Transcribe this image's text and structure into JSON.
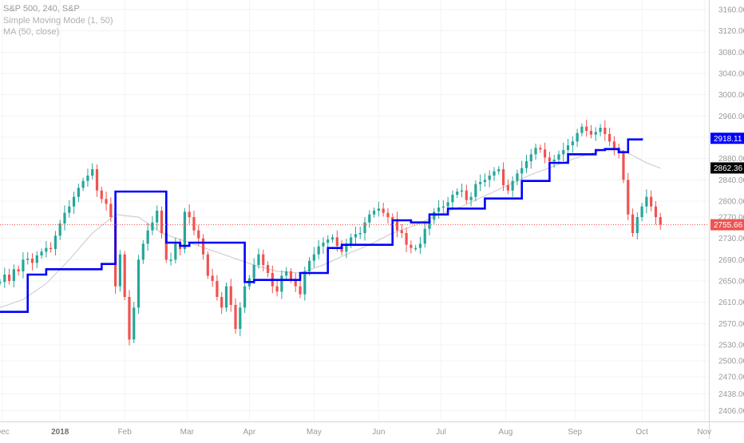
{
  "legend": {
    "title": "S&P 500, 240, S&P",
    "indicator_1": "Simple Moving Mode (1, 50)",
    "indicator_2": "MA (50, close)"
  },
  "colors": {
    "up": "#26a69a",
    "down": "#ef5350",
    "mode_line": "#0000ff",
    "ma_line": "#c8c8c8",
    "last_price": "#ef5350",
    "grid": "#f3f3f3",
    "axis_text": "#9a9a9a"
  },
  "chart_data": {
    "type": "candlestick",
    "y_ticks": [
      3160,
      3120,
      3080,
      3040,
      3000,
      2960,
      2920,
      2880,
      2840,
      2800,
      2770,
      2730,
      2690,
      2650,
      2610,
      2570,
      2530,
      2500,
      2470,
      2438,
      2406
    ],
    "y_range": [
      2386,
      3178
    ],
    "x_labels": [
      "Dec",
      "2018",
      "Feb",
      "Mar",
      "Apr",
      "May",
      "Jun",
      "Jul",
      "Aug",
      "Sep",
      "Oct",
      "Nov"
    ],
    "price_labels": {
      "mode": "2918.11",
      "ma": "2862.36",
      "last": "2755.66"
    },
    "grid": true,
    "candles_approx": [
      [
        0,
        2648
      ],
      [
        0.2,
        2662
      ],
      [
        0.4,
        2650
      ],
      [
        0.6,
        2672
      ],
      [
        0.8,
        2668
      ],
      [
        1.0,
        2690
      ],
      [
        1.2,
        2692
      ],
      [
        1.4,
        2684
      ],
      [
        1.6,
        2698
      ],
      [
        1.8,
        2705
      ],
      [
        2.0,
        2712
      ],
      [
        2.2,
        2710
      ],
      [
        2.4,
        2735
      ],
      [
        2.6,
        2758
      ],
      [
        2.8,
        2778
      ],
      [
        3.0,
        2790
      ],
      [
        3.2,
        2808
      ],
      [
        3.4,
        2825
      ],
      [
        3.6,
        2838
      ],
      [
        3.8,
        2848
      ],
      [
        4.0,
        2860
      ],
      [
        4.2,
        2820
      ],
      [
        4.4,
        2804
      ],
      [
        4.6,
        2795
      ],
      [
        4.8,
        2770
      ],
      [
        5.0,
        2640
      ],
      [
        5.2,
        2700
      ],
      [
        5.4,
        2620
      ],
      [
        5.6,
        2540
      ],
      [
        5.8,
        2600
      ],
      [
        6.0,
        2690
      ],
      [
        6.2,
        2720
      ],
      [
        6.4,
        2745
      ],
      [
        6.6,
        2760
      ],
      [
        6.8,
        2782
      ],
      [
        7.0,
        2740
      ],
      [
        7.2,
        2690
      ],
      [
        7.4,
        2690
      ],
      [
        7.6,
        2720
      ],
      [
        7.8,
        2710
      ],
      [
        8.0,
        2780
      ],
      [
        8.2,
        2770
      ],
      [
        8.4,
        2745
      ],
      [
        8.6,
        2730
      ],
      [
        8.8,
        2700
      ],
      [
        9.0,
        2660
      ],
      [
        9.2,
        2650
      ],
      [
        9.4,
        2620
      ],
      [
        9.6,
        2600
      ],
      [
        9.8,
        2640
      ],
      [
        10.0,
        2605
      ],
      [
        10.2,
        2560
      ],
      [
        10.4,
        2600
      ],
      [
        10.6,
        2640
      ],
      [
        10.8,
        2655
      ],
      [
        11.0,
        2680
      ],
      [
        11.2,
        2700
      ],
      [
        11.4,
        2680
      ],
      [
        11.6,
        2665
      ],
      [
        11.8,
        2640
      ],
      [
        12.0,
        2630
      ],
      [
        12.2,
        2660
      ],
      [
        12.4,
        2668
      ],
      [
        12.6,
        2652
      ],
      [
        12.8,
        2640
      ],
      [
        13.0,
        2625
      ],
      [
        13.2,
        2668
      ],
      [
        13.4,
        2688
      ],
      [
        13.6,
        2700
      ],
      [
        13.8,
        2715
      ],
      [
        14.0,
        2722
      ],
      [
        14.2,
        2728
      ],
      [
        14.4,
        2732
      ],
      [
        14.6,
        2716
      ],
      [
        14.8,
        2705
      ],
      [
        15.0,
        2720
      ],
      [
        15.2,
        2732
      ],
      [
        15.4,
        2738
      ],
      [
        15.6,
        2740
      ],
      [
        15.8,
        2760
      ],
      [
        16.0,
        2775
      ],
      [
        16.2,
        2782
      ],
      [
        16.4,
        2786
      ],
      [
        16.6,
        2778
      ],
      [
        16.8,
        2770
      ],
      [
        17.0,
        2766
      ],
      [
        17.2,
        2745
      ],
      [
        17.4,
        2740
      ],
      [
        17.6,
        2718
      ],
      [
        17.8,
        2712
      ],
      [
        18.0,
        2712
      ],
      [
        18.2,
        2720
      ],
      [
        18.4,
        2748
      ],
      [
        18.6,
        2765
      ],
      [
        18.8,
        2780
      ],
      [
        19.0,
        2788
      ],
      [
        19.2,
        2790
      ],
      [
        19.4,
        2798
      ],
      [
        19.6,
        2812
      ],
      [
        19.8,
        2818
      ],
      [
        20.0,
        2820
      ],
      [
        20.2,
        2802
      ],
      [
        20.4,
        2808
      ],
      [
        20.6,
        2832
      ],
      [
        20.8,
        2836
      ],
      [
        21.0,
        2840
      ],
      [
        21.2,
        2848
      ],
      [
        21.4,
        2856
      ],
      [
        21.6,
        2860
      ],
      [
        21.8,
        2830
      ],
      [
        22.0,
        2820
      ],
      [
        22.2,
        2838
      ],
      [
        22.4,
        2852
      ],
      [
        22.6,
        2862
      ],
      [
        22.8,
        2875
      ],
      [
        23.0,
        2888
      ],
      [
        23.2,
        2900
      ],
      [
        23.4,
        2897
      ],
      [
        23.6,
        2882
      ],
      [
        23.8,
        2875
      ],
      [
        24.0,
        2878
      ],
      [
        24.2,
        2888
      ],
      [
        24.4,
        2896
      ],
      [
        24.6,
        2905
      ],
      [
        24.8,
        2912
      ],
      [
        25.0,
        2928
      ],
      [
        25.2,
        2940
      ],
      [
        25.4,
        2932
      ],
      [
        25.6,
        2925
      ],
      [
        25.8,
        2930
      ],
      [
        26.0,
        2938
      ],
      [
        26.2,
        2926
      ],
      [
        26.4,
        2912
      ],
      [
        26.6,
        2900
      ],
      [
        26.8,
        2890
      ],
      [
        27.0,
        2840
      ],
      [
        27.2,
        2775
      ],
      [
        27.4,
        2740
      ],
      [
        27.6,
        2770
      ],
      [
        27.8,
        2790
      ],
      [
        28.0,
        2808
      ],
      [
        28.2,
        2790
      ],
      [
        28.4,
        2770
      ],
      [
        28.6,
        2756
      ]
    ],
    "mode_steps_approx": [
      [
        0,
        2592
      ],
      [
        1.2,
        2592
      ],
      [
        1.2,
        2662
      ],
      [
        2.0,
        2662
      ],
      [
        2.0,
        2672
      ],
      [
        4.4,
        2672
      ],
      [
        4.4,
        2682
      ],
      [
        5.0,
        2682
      ],
      [
        5.0,
        2818
      ],
      [
        7.2,
        2818
      ],
      [
        7.2,
        2722
      ],
      [
        7.8,
        2722
      ],
      [
        7.8,
        2716
      ],
      [
        8.2,
        2716
      ],
      [
        8.2,
        2722
      ],
      [
        10.6,
        2722
      ],
      [
        10.6,
        2648
      ],
      [
        11.0,
        2648
      ],
      [
        11.0,
        2652
      ],
      [
        13.0,
        2652
      ],
      [
        13.0,
        2665
      ],
      [
        14.2,
        2665
      ],
      [
        14.2,
        2712
      ],
      [
        14.8,
        2712
      ],
      [
        14.8,
        2718
      ],
      [
        17.0,
        2718
      ],
      [
        17.0,
        2764
      ],
      [
        17.8,
        2764
      ],
      [
        17.8,
        2760
      ],
      [
        18.6,
        2760
      ],
      [
        18.6,
        2775
      ],
      [
        19.4,
        2775
      ],
      [
        19.4,
        2786
      ],
      [
        21.0,
        2786
      ],
      [
        21.0,
        2805
      ],
      [
        22.6,
        2805
      ],
      [
        22.6,
        2838
      ],
      [
        23.8,
        2838
      ],
      [
        23.8,
        2872
      ],
      [
        24.6,
        2872
      ],
      [
        24.6,
        2888
      ],
      [
        25.8,
        2888
      ],
      [
        25.8,
        2896
      ],
      [
        26.2,
        2896
      ],
      [
        26.2,
        2898
      ],
      [
        26.8,
        2898
      ],
      [
        26.8,
        2892
      ],
      [
        27.2,
        2892
      ],
      [
        27.2,
        2916
      ],
      [
        27.8,
        2916
      ],
      [
        27.8,
        2918
      ]
    ],
    "ma_approx": [
      [
        0,
        2600
      ],
      [
        1,
        2615
      ],
      [
        2,
        2645
      ],
      [
        3,
        2690
      ],
      [
        4,
        2740
      ],
      [
        5,
        2775
      ],
      [
        6,
        2770
      ],
      [
        7,
        2740
      ],
      [
        8,
        2725
      ],
      [
        9,
        2710
      ],
      [
        10,
        2695
      ],
      [
        11,
        2680
      ],
      [
        12,
        2668
      ],
      [
        13,
        2665
      ],
      [
        14,
        2680
      ],
      [
        15,
        2700
      ],
      [
        16,
        2718
      ],
      [
        17,
        2740
      ],
      [
        18,
        2755
      ],
      [
        19,
        2775
      ],
      [
        20,
        2790
      ],
      [
        21,
        2810
      ],
      [
        22,
        2830
      ],
      [
        23,
        2850
      ],
      [
        24,
        2866
      ],
      [
        25,
        2882
      ],
      [
        26,
        2895
      ],
      [
        27,
        2895
      ],
      [
        28,
        2872
      ],
      [
        28.6,
        2862
      ]
    ]
  }
}
